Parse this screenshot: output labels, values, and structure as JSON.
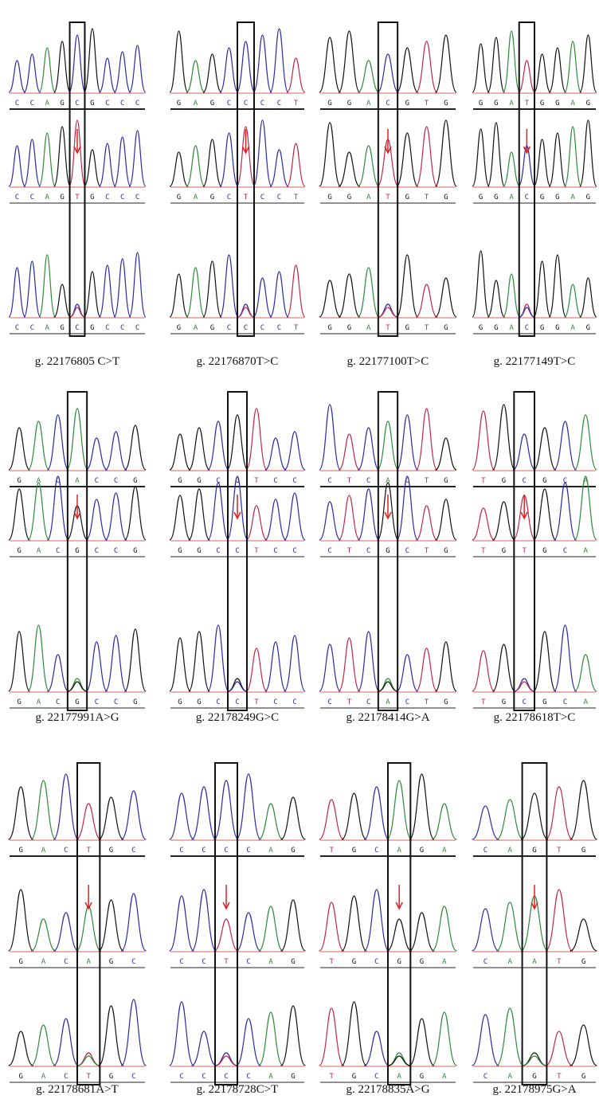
{
  "panels": [
    {
      "caption": "g. 22176805 C>T",
      "tracks": [
        [
          "C",
          "C",
          "A",
          "G",
          "C",
          "G",
          "C",
          "C",
          "C"
        ],
        [
          "C",
          "C",
          "A",
          "G",
          "T",
          "G",
          "C",
          "C",
          "C"
        ],
        [
          "C",
          "C",
          "A",
          "G",
          "C",
          "G",
          "C",
          "C",
          "C"
        ]
      ]
    },
    {
      "caption": "g. 22176870T>C",
      "tracks": [
        [
          "G",
          "A",
          "G",
          "C",
          "C",
          "C",
          "C",
          "T"
        ],
        [
          "G",
          "A",
          "G",
          "C",
          "T",
          "C",
          "C",
          "T"
        ],
        [
          "G",
          "A",
          "G",
          "C",
          "C",
          "C",
          "C",
          "T"
        ]
      ]
    },
    {
      "caption": "g. 22177100T>C",
      "tracks": [
        [
          "G",
          "G",
          "A",
          "C",
          "G",
          "T",
          "G"
        ],
        [
          "G",
          "G",
          "A",
          "T",
          "G",
          "T",
          "G"
        ],
        [
          "G",
          "G",
          "A",
          "T",
          "G",
          "T",
          "G"
        ]
      ]
    },
    {
      "caption": "g. 22177149T>C",
      "tracks": [
        [
          "G",
          "G",
          "A",
          "T",
          "G",
          "G",
          "A",
          "G"
        ],
        [
          "G",
          "G",
          "A",
          "C",
          "G",
          "G",
          "A",
          "G"
        ],
        [
          "G",
          "G",
          "A",
          "C",
          "G",
          "G",
          "A",
          "G"
        ]
      ]
    },
    {
      "caption": "g. 22177991A>G",
      "tracks": [
        [
          "G",
          "A",
          "C",
          "A",
          "C",
          "C",
          "G"
        ],
        [
          "G",
          "A",
          "C",
          "G",
          "C",
          "C",
          "G"
        ],
        [
          "G",
          "A",
          "C",
          "G",
          "C",
          "C",
          "G"
        ]
      ]
    },
    {
      "caption": "g. 22178249G>C",
      "tracks": [
        [
          "G",
          "G",
          "C",
          "G",
          "T",
          "C",
          "C"
        ],
        [
          "G",
          "G",
          "C",
          "C",
          "T",
          "C",
          "C"
        ],
        [
          "G",
          "G",
          "C",
          "C",
          "T",
          "C",
          "C"
        ]
      ]
    },
    {
      "caption": "g. 22178414G>A",
      "tracks": [
        [
          "C",
          "T",
          "C",
          "A",
          "C",
          "T",
          "G"
        ],
        [
          "C",
          "T",
          "C",
          "G",
          "C",
          "T",
          "G"
        ],
        [
          "C",
          "T",
          "C",
          "A",
          "C",
          "T",
          "G"
        ]
      ]
    },
    {
      "caption": "g. 22178618T>C",
      "tracks": [
        [
          "T",
          "G",
          "C",
          "G",
          "C",
          "A"
        ],
        [
          "T",
          "G",
          "T",
          "G",
          "C",
          "A"
        ],
        [
          "T",
          "G",
          "C",
          "G",
          "C",
          "A"
        ]
      ]
    },
    {
      "caption": "g. 22178681A>T",
      "tracks": [
        [
          "G",
          "A",
          "C",
          "T",
          "G",
          "C"
        ],
        [
          "G",
          "A",
          "C",
          "A",
          "G",
          "C"
        ],
        [
          "G",
          "A",
          "C",
          "T",
          "G",
          "C"
        ]
      ]
    },
    {
      "caption": "g. 22178728C>T",
      "tracks": [
        [
          "C",
          "C",
          "C",
          "C",
          "A",
          "G"
        ],
        [
          "C",
          "C",
          "T",
          "C",
          "A",
          "G"
        ],
        [
          "C",
          "C",
          "C",
          "C",
          "A",
          "G"
        ]
      ]
    },
    {
      "caption": "g. 22178835A>G",
      "tracks": [
        [
          "T",
          "G",
          "C",
          "A",
          "G",
          "A"
        ],
        [
          "T",
          "G",
          "C",
          "G",
          "G",
          "A"
        ],
        [
          "T",
          "G",
          "C",
          "A",
          "G",
          "A"
        ]
      ]
    },
    {
      "caption": "g. 22178975G>A",
      "tracks": [
        [
          "C",
          "A",
          "G",
          "T",
          "G"
        ],
        [
          "C",
          "A",
          "A",
          "T",
          "G"
        ],
        [
          "C",
          "A",
          "G",
          "T",
          "G"
        ]
      ]
    }
  ]
}
